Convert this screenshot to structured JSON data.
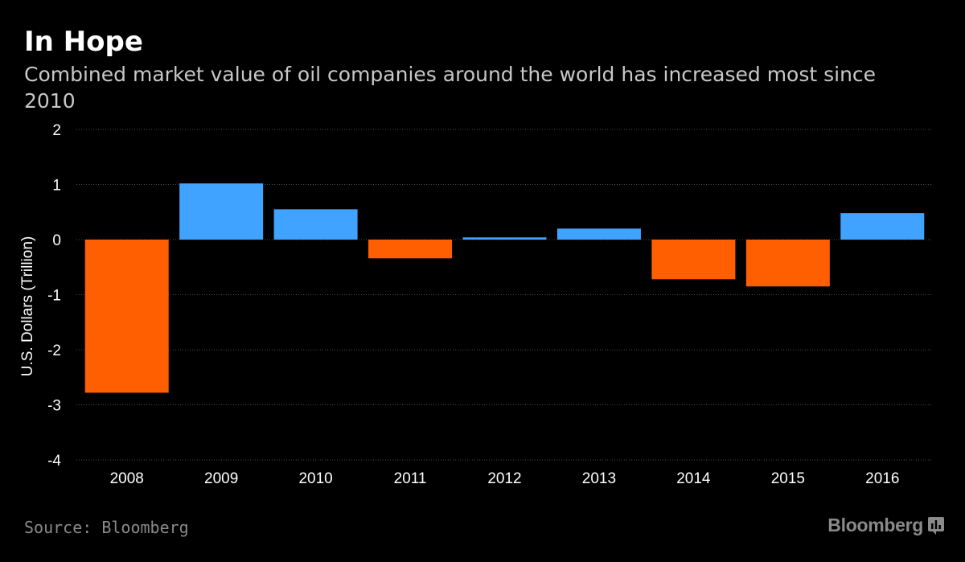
{
  "header": {
    "title": "In Hope",
    "subtitle": "Combined market value of oil companies around the world has increased most since 2010"
  },
  "footer": {
    "source": "Source: Bloomberg",
    "brand": "Bloomberg"
  },
  "colors": {
    "background": "#000000",
    "positive": "#3fa3ff",
    "negative": "#ff5f00",
    "grid": "#4a4a4a",
    "axis_text": "#ffffff"
  },
  "chart_data": {
    "type": "bar",
    "title": "In Hope",
    "subtitle": "Combined market value of oil companies around the world has increased most since 2010",
    "xlabel": "",
    "ylabel": "U.S. Dollars (Trillion)",
    "categories": [
      "2008",
      "2009",
      "2010",
      "2011",
      "2012",
      "2013",
      "2014",
      "2015",
      "2016"
    ],
    "values": [
      -2.78,
      1.02,
      0.55,
      -0.34,
      0.04,
      0.2,
      -0.72,
      -0.85,
      0.48
    ],
    "ylim": [
      -4,
      2
    ],
    "yticks": [
      "2",
      "1",
      "0",
      "-1",
      "-2",
      "-3",
      "-4"
    ],
    "grid": "horizontal dotted",
    "legend": "none"
  }
}
